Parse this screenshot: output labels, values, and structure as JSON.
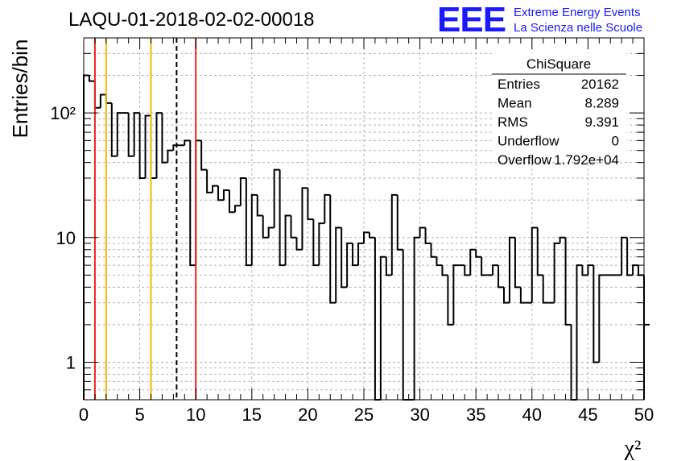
{
  "title": "LAQU-01-2018-02-02-00018",
  "logo": {
    "mark": "EEE",
    "line1": "Extreme Energy Events",
    "line2": "La Scienza nelle Scuole",
    "color": "#1a1aff"
  },
  "stats_box": {
    "name": "ChiSquare",
    "rows": [
      {
        "label": "Entries",
        "value": "20162"
      },
      {
        "label": "Mean",
        "value": "8.289"
      },
      {
        "label": "RMS",
        "value": "9.391"
      },
      {
        "label": "Underflow",
        "value": "0"
      },
      {
        "label": "Overflow",
        "value": "1.792e+04"
      }
    ]
  },
  "chart_data": {
    "type": "histogram",
    "xlabel": "χ²",
    "ylabel": "Entries/bin",
    "xlim": [
      0,
      50
    ],
    "ylim": [
      0.5,
      400
    ],
    "log_y": true,
    "grid": true,
    "bin_width": 0.5,
    "x_ticks": [
      0,
      5,
      10,
      15,
      20,
      25,
      30,
      35,
      40,
      45,
      50
    ],
    "y_ticks": [
      {
        "value": 1,
        "label": "1"
      },
      {
        "value": 10,
        "label": "10"
      },
      {
        "value": 100,
        "label": "10²"
      }
    ],
    "values": [
      200,
      180,
      110,
      140,
      120,
      45,
      100,
      100,
      45,
      100,
      30,
      95,
      30,
      100,
      40,
      50,
      55,
      55,
      60,
      6,
      60,
      35,
      23,
      26,
      20,
      24,
      16,
      18,
      30,
      6,
      22,
      15,
      10,
      12,
      35,
      6,
      15,
      10,
      8,
      25,
      14,
      6,
      13,
      22,
      3,
      12,
      4,
      9,
      6,
      9,
      11,
      10,
      0,
      7,
      5,
      22,
      8,
      0,
      0,
      10,
      12,
      9,
      7,
      6,
      5,
      2,
      6,
      6,
      5,
      8,
      7,
      5,
      5,
      6,
      4,
      3,
      10,
      4,
      3,
      3,
      12,
      5,
      3,
      3,
      9,
      10,
      2,
      0,
      6,
      5,
      6,
      1,
      5,
      5,
      5,
      5,
      10,
      5,
      6,
      5,
      2
    ],
    "reference_lines": [
      {
        "x": 1,
        "color": "#e8261c",
        "style": "solid"
      },
      {
        "x": 2,
        "color": "#f2b705",
        "style": "solid"
      },
      {
        "x": 6,
        "color": "#f2b705",
        "style": "solid"
      },
      {
        "x": 8.289,
        "color": "#000000",
        "style": "dashed"
      },
      {
        "x": 10,
        "color": "#e8261c",
        "style": "solid"
      }
    ]
  }
}
